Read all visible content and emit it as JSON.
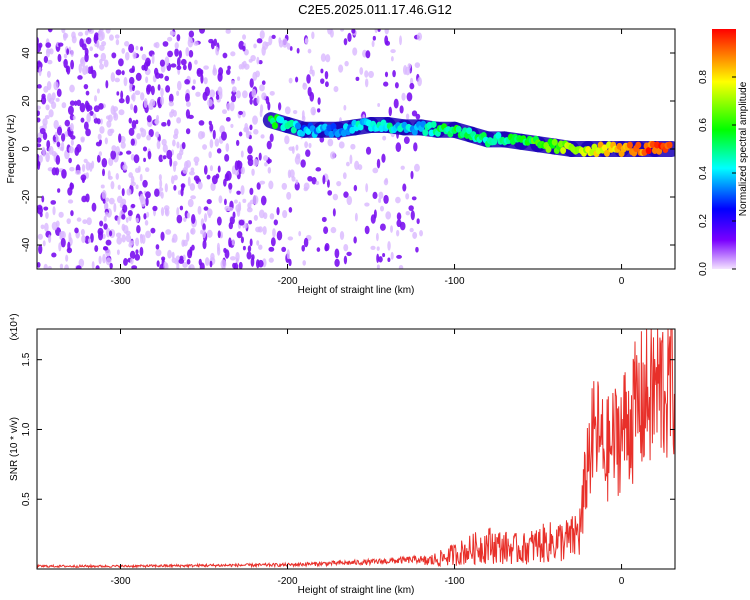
{
  "figure_title": "C2E5.2025.011.17.46.G12",
  "chart_data": [
    {
      "type": "heatmap",
      "name": "spectrogram",
      "xlabel": "Height of straight line (km)",
      "ylabel": "Frequency (Hz)",
      "xlim": [
        -350,
        32
      ],
      "ylim": [
        -50,
        50
      ],
      "xticks": [
        -300,
        -200,
        -100,
        0
      ],
      "yticks": [
        -40,
        -20,
        0,
        20,
        40
      ],
      "grid": false,
      "colorbar": {
        "label": "Normalized spectral amplitude",
        "range": [
          0,
          1
        ],
        "ticks": [
          0.0,
          0.2,
          0.4,
          0.6,
          0.8
        ],
        "colors": [
          "#f4e4ff",
          "#7a00ff",
          "#0000ff",
          "#00ffff",
          "#00ff00",
          "#ffff00",
          "#ff0000"
        ]
      },
      "noise_region_x": [
        -350,
        -120
      ],
      "signal_track": {
        "x": [
          -210,
          -200,
          -190,
          -180,
          -170,
          -160,
          -150,
          -140,
          -130,
          -120,
          -110,
          -100,
          -90,
          -80,
          -70,
          -60,
          -50,
          -40,
          -30,
          -20,
          -10,
          0,
          10,
          20,
          30
        ],
        "y": [
          12,
          10,
          8,
          8,
          8,
          9,
          10,
          10,
          9,
          9,
          8,
          8,
          6,
          4,
          4,
          3,
          2,
          1,
          0,
          0,
          0,
          0,
          0,
          0,
          0
        ],
        "amplitude": [
          0.55,
          0.45,
          0.35,
          0.35,
          0.35,
          0.4,
          0.45,
          0.45,
          0.4,
          0.4,
          0.5,
          0.55,
          0.5,
          0.5,
          0.5,
          0.55,
          0.6,
          0.65,
          0.7,
          0.75,
          0.8,
          0.85,
          0.9,
          0.95,
          0.95
        ]
      }
    },
    {
      "type": "line",
      "name": "snr",
      "xlabel": "Height of straight line (km)",
      "ylabel": "SNR (10 * v/v)",
      "y_multiplier": "(x10⁴)",
      "xlim": [
        -350,
        32
      ],
      "ylim": [
        0,
        1.72
      ],
      "xticks": [
        -300,
        -200,
        -100,
        0
      ],
      "yticks": [
        0.5,
        1.0,
        1.5
      ],
      "ytick_labels": [
        "0.5",
        "1.0",
        "1.5"
      ],
      "grid": false,
      "series": [
        {
          "name": "SNR",
          "color": "#e8302a",
          "x": [
            -350,
            -300,
            -250,
            -200,
            -150,
            -120,
            -110,
            -100,
            -90,
            -80,
            -70,
            -60,
            -50,
            -40,
            -30,
            -25,
            -22,
            -20,
            -15,
            -10,
            -5,
            0,
            5,
            10,
            15,
            20,
            25,
            32
          ],
          "y": [
            0.02,
            0.02,
            0.025,
            0.03,
            0.05,
            0.07,
            0.1,
            0.15,
            0.2,
            0.25,
            0.22,
            0.2,
            0.25,
            0.28,
            0.3,
            0.4,
            0.7,
            1.0,
            1.2,
            1.0,
            1.1,
            1.2,
            1.3,
            1.4,
            1.5,
            1.55,
            1.6,
            1.65
          ]
        }
      ]
    }
  ]
}
